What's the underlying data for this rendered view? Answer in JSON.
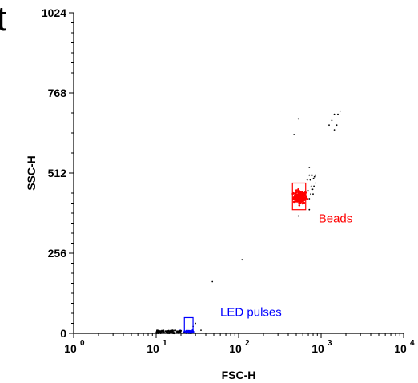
{
  "page": {
    "corner_fragment": "t"
  },
  "colors": {
    "axis": "#000000",
    "beads": "#ff0000",
    "led": "#0000ff",
    "events": "#000000"
  },
  "chart_data": {
    "type": "scatter",
    "xlabel": "FSC-H",
    "ylabel": "SSC-H",
    "x_scale": "log",
    "xlim": [
      1,
      10000
    ],
    "ylim": [
      0,
      1024
    ],
    "x_ticks": [
      {
        "base": "10",
        "exp": "0",
        "value": 1
      },
      {
        "base": "10",
        "exp": "1",
        "value": 10
      },
      {
        "base": "10",
        "exp": "2",
        "value": 100
      },
      {
        "base": "10",
        "exp": "3",
        "value": 1000
      },
      {
        "base": "10",
        "exp": "4",
        "value": 10000
      }
    ],
    "y_ticks": [
      {
        "label": "0",
        "value": 0
      },
      {
        "label": "256",
        "value": 256
      },
      {
        "label": "512",
        "value": 512
      },
      {
        "label": "768",
        "value": 768
      },
      {
        "label": "1024",
        "value": 1024
      }
    ],
    "grid": false,
    "gates": [
      {
        "name": "Beads",
        "color": "#ff0000",
        "x": [
          450,
          650
        ],
        "y": [
          395,
          480
        ]
      },
      {
        "name": "LED pulses",
        "color": "#0000ff",
        "x": [
          22,
          28
        ],
        "y": [
          5,
          50
        ]
      }
    ],
    "series": [
      {
        "name": "Beads",
        "color": "#ff0000",
        "center": [
          560,
          435
        ],
        "spread": [
          0.04,
          10
        ],
        "count": 140
      },
      {
        "name": "LED pulses",
        "color": "#0000ff",
        "center": [
          25,
          5
        ],
        "spread": [
          0.03,
          3
        ],
        "count": 40
      },
      {
        "color": "#000000",
        "points": [
          [
            470,
            635
          ],
          [
            530,
            685
          ],
          [
            1350,
            680
          ],
          [
            1450,
            700
          ],
          [
            1600,
            700
          ],
          [
            1700,
            710
          ],
          [
            1250,
            665
          ],
          [
            1550,
            665
          ],
          [
            1450,
            650
          ],
          [
            720,
            530
          ],
          [
            720,
            505
          ],
          [
            740,
            490
          ],
          [
            780,
            505
          ],
          [
            810,
            495
          ],
          [
            830,
            500
          ],
          [
            850,
            505
          ],
          [
            760,
            470
          ],
          [
            790,
            460
          ],
          [
            820,
            470
          ],
          [
            700,
            455
          ],
          [
            750,
            445
          ],
          [
            800,
            445
          ],
          [
            720,
            430
          ],
          [
            860,
            480
          ],
          [
            680,
            490
          ],
          [
            530,
            375
          ],
          [
            720,
            395
          ],
          [
            110,
            235
          ],
          [
            48,
            165
          ],
          [
            30,
            32
          ],
          [
            28,
            22
          ],
          [
            20,
            8
          ],
          [
            35,
            10
          ],
          [
            16,
            8
          ],
          [
            18,
            6
          ],
          [
            22,
            4
          ],
          [
            12,
            6
          ]
        ]
      },
      {
        "color": "#000000",
        "band": {
          "x": [
            10,
            20
          ],
          "y": [
            0,
            10
          ],
          "count": 90
        }
      }
    ]
  }
}
